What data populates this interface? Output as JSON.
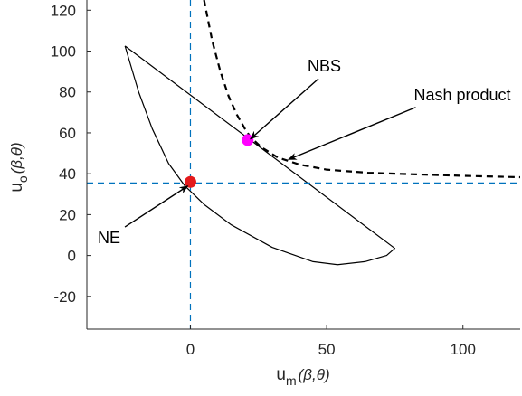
{
  "chart_data": {
    "type": "line",
    "title": "",
    "xlabel": {
      "main": "u",
      "sub": "m",
      "args": "(β,θ)"
    },
    "ylabel": {
      "main": "u",
      "sub": "o",
      "args": "(β,θ)"
    },
    "xlim": [
      -38,
      121
    ],
    "ylim": [
      -36,
      125
    ],
    "x_ticks": [
      0,
      50,
      100
    ],
    "x_tick_labels": [
      "0",
      "50",
      "100"
    ],
    "y_ticks": [
      -20,
      0,
      20,
      40,
      60,
      80,
      100,
      120
    ],
    "y_tick_labels": [
      "-20",
      "0",
      "20",
      "40",
      "60",
      "80",
      "100",
      "120"
    ],
    "grid": false,
    "legend": "none",
    "series": [
      {
        "style": "solid black",
        "points": [
          [
            -24,
            102.5
          ],
          [
            75,
            3.5
          ],
          [
            72,
            0
          ],
          [
            64,
            -3
          ],
          [
            54,
            -4.5
          ],
          [
            45,
            -3
          ],
          [
            30,
            4
          ],
          [
            15,
            15
          ],
          [
            5,
            25
          ],
          [
            -2,
            34
          ],
          [
            -8,
            45
          ],
          [
            -14,
            62
          ],
          [
            -19,
            80
          ],
          [
            -24,
            102.5
          ]
        ]
      },
      {
        "style": "dashed black",
        "points": [
          [
            5,
            125
          ],
          [
            8,
            105
          ],
          [
            11,
            90
          ],
          [
            14,
            78
          ],
          [
            17,
            69
          ],
          [
            20,
            62
          ],
          [
            22,
            58
          ],
          [
            26,
            53
          ],
          [
            32,
            48
          ],
          [
            40,
            44.5
          ],
          [
            50,
            42
          ],
          [
            65,
            40.5
          ],
          [
            80,
            39.8
          ],
          [
            100,
            39
          ],
          [
            121,
            38.3
          ]
        ]
      },
      {
        "style": "dashed blue",
        "orientation": "vertical",
        "x": 0
      },
      {
        "style": "dashed blue",
        "orientation": "horizontal",
        "y": 35.5
      }
    ],
    "points": [
      {
        "label": "NE",
        "x": 0,
        "y": 36,
        "color": "#e41a1c"
      },
      {
        "label": "NBS",
        "x": 21,
        "y": 56.5,
        "color": "#ff00ff"
      }
    ],
    "annotations": [
      {
        "text": "NBS",
        "text_at": [
          43,
          90
        ],
        "arrow_to": [
          22,
          57
        ]
      },
      {
        "text": "Nash product",
        "text_at": [
          82,
          76
        ],
        "arrow_to": [
          36,
          47
        ]
      },
      {
        "text": "NE",
        "text_at": [
          -34,
          6
        ],
        "arrow_to": [
          -1,
          34
        ]
      }
    ]
  }
}
